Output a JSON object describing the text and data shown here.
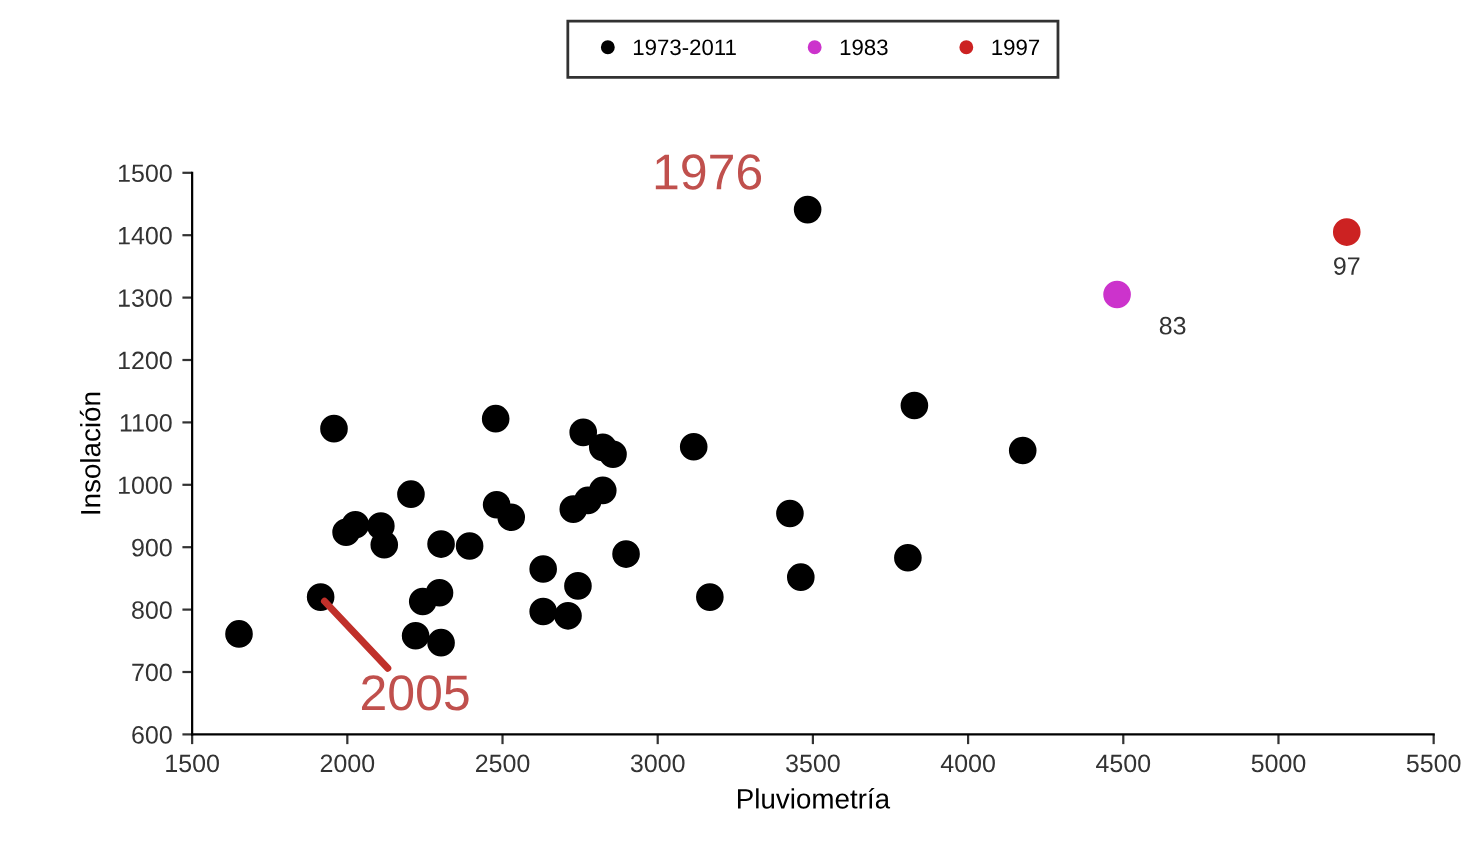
{
  "chart_data": {
    "type": "scatter",
    "xlabel": "Pluviometría",
    "ylabel": "Insolación",
    "xlim": [
      1500,
      5500
    ],
    "xticks": [
      1500,
      2000,
      2500,
      3000,
      3500,
      4000,
      4500,
      5000,
      5500
    ],
    "ylim": [
      600,
      1500
    ],
    "yticks": [
      600,
      700,
      800,
      900,
      1000,
      1100,
      1200,
      1300,
      1400,
      1500
    ],
    "grid": false,
    "legend": "top",
    "marker": "circle",
    "series": [
      {
        "name": "1973-2011",
        "color": "#000000",
        "x": [
          1651,
          1957,
          1914,
          1996,
          2026,
          2108,
          2119,
          2205,
          2243,
          2297,
          2220,
          2302,
          2302,
          2394,
          2478,
          2481,
          2528,
          2631,
          2631,
          2711,
          2743,
          2728,
          2775,
          2823,
          2760,
          2823,
          2856,
          2898,
          3116,
          3168,
          3483,
          3426,
          3461,
          3827,
          4176,
          3806
        ],
        "values": [
          761,
          1090,
          820,
          924,
          936,
          934,
          904,
          985,
          813,
          827,
          758,
          747,
          905,
          902,
          1106,
          968,
          948,
          865,
          797,
          790,
          838,
          961,
          975,
          991,
          1084,
          1060,
          1049,
          889,
          1061,
          820,
          1441,
          954,
          852,
          1127,
          1055,
          883
        ]
      },
      {
        "name": "1983",
        "color": "#cc33cc",
        "x": [
          4480
        ],
        "values": [
          1305
        ]
      },
      {
        "name": "1997",
        "color": "#cc2222",
        "x": [
          5220
        ],
        "values": [
          1405
        ]
      }
    ],
    "annotations": [
      {
        "text": "1976",
        "x": 3483,
        "y": 1441
      },
      {
        "text": "83",
        "x": 4480,
        "y": 1305
      },
      {
        "text": "97",
        "x": 5220,
        "y": 1405
      },
      {
        "text": "2005",
        "x": 1914,
        "y": 820
      }
    ]
  }
}
